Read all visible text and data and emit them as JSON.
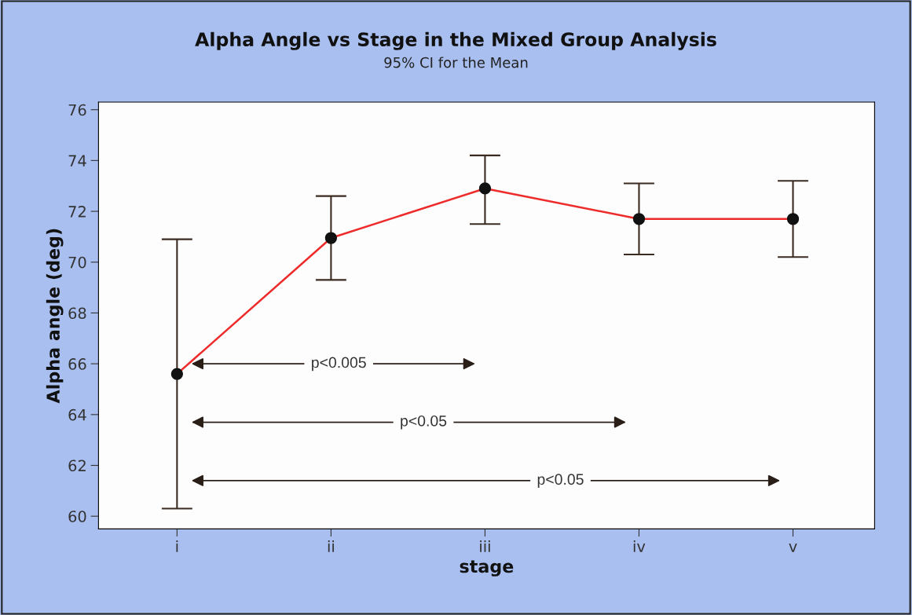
{
  "chart_data": {
    "type": "line",
    "title": "Alpha Angle vs Stage in the Mixed Group Analysis",
    "subtitle": "95% CI for the Mean",
    "xlabel": "stage",
    "ylabel": "Alpha angle (deg)",
    "categories": [
      "i",
      "ii",
      "iii",
      "iv",
      "v"
    ],
    "series": [
      {
        "color": "#ee2b2b",
        "values": [
          65.6,
          70.95,
          72.9,
          71.7,
          71.7
        ],
        "errors": [
          [
            60.3,
            70.9
          ],
          [
            69.3,
            72.6
          ],
          [
            71.5,
            74.2
          ],
          [
            70.3,
            73.1
          ],
          [
            70.2,
            73.2
          ]
        ]
      }
    ],
    "marker": "circle",
    "ylim": [
      59.5,
      76.3
    ],
    "yticks": [
      60,
      62,
      64,
      66,
      68,
      70,
      72,
      74,
      76
    ],
    "grid": false,
    "annotations": [
      "p<0.005",
      "p<0.05",
      "p<0.05"
    ]
  }
}
